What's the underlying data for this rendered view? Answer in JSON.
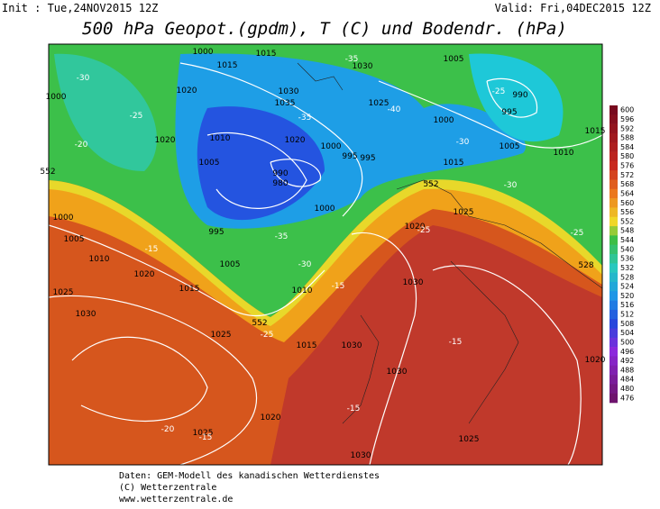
{
  "header": {
    "init": "Init : Tue,24NOV2015 12Z",
    "valid": "Valid: Fri,04DEC2015 12Z",
    "title": "500 hPa Geopot.(gpdm), T (C) und Bodendr. (hPa)"
  },
  "colorbar": {
    "levels": [
      600,
      596,
      592,
      588,
      584,
      580,
      576,
      572,
      568,
      564,
      560,
      556,
      552,
      548,
      544,
      540,
      536,
      532,
      528,
      524,
      520,
      516,
      512,
      508,
      504,
      500,
      496,
      492,
      488,
      484,
      480,
      476
    ]
  },
  "map": {
    "pressure_labels": [
      1000,
      1015,
      1015,
      1030,
      1005,
      1020,
      1035,
      1030,
      1025,
      1000,
      1005,
      990,
      995,
      1015,
      1010,
      1020,
      1010,
      1020,
      1000,
      995,
      1015,
      1005,
      990,
      980,
      995,
      1000,
      1000,
      1025,
      1020,
      1005,
      1010,
      1005,
      1020,
      1015,
      1025,
      1030,
      1025,
      1015,
      1030,
      1030,
      1030,
      1020,
      1030,
      1025,
      1020,
      1025,
      1010,
      995,
      1000
    ],
    "temperature_labels": [
      -30,
      -25,
      -20,
      -35,
      -40,
      -35,
      -30,
      -25,
      -30,
      -25,
      -15,
      -15,
      -25,
      -15,
      -20,
      -15,
      -15,
      -25,
      -35,
      -30
    ],
    "geopotential_labels": [
      552,
      552,
      552,
      528
    ]
  },
  "footer": {
    "source": "Daten: GEM-Modell des kanadischen Wetterdienstes",
    "copyright": "(C) Wetterzentrale",
    "url": "www.wetterzentrale.de"
  }
}
